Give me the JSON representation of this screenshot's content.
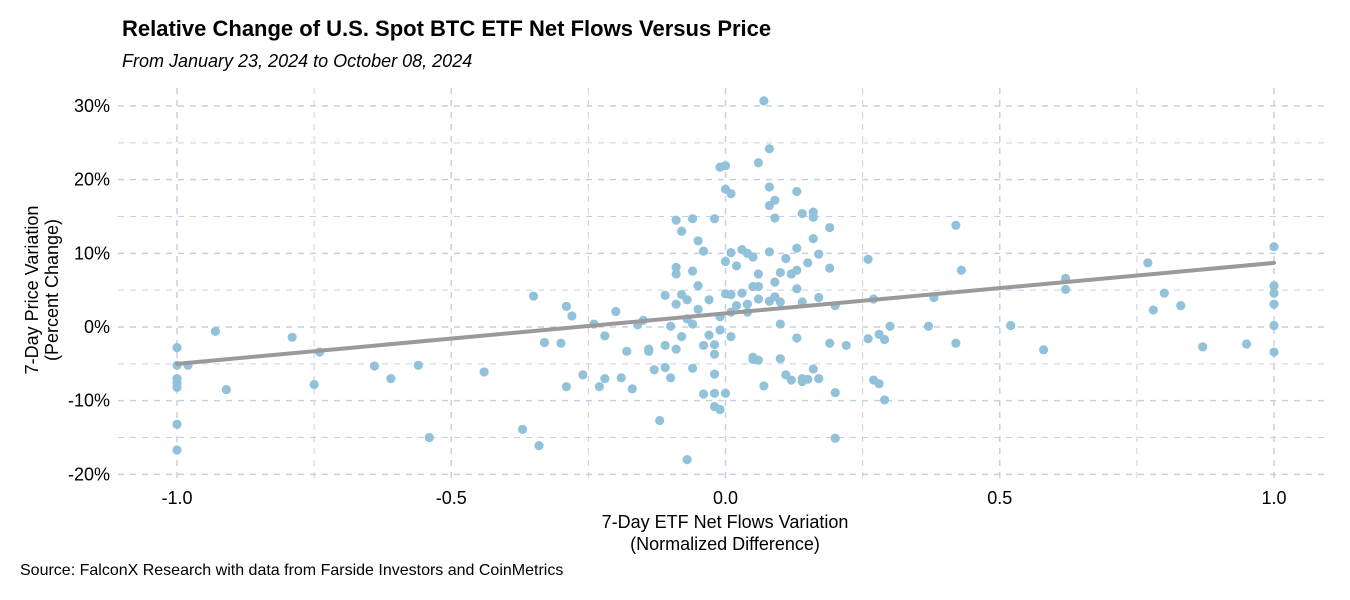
{
  "chart_data": {
    "type": "scatter",
    "title": "Relative Change of U.S. Spot BTC ETF Net Flows Versus Price",
    "subtitle": "From January 23, 2024 to October 08, 2024",
    "xlabel_line1": "7-Day ETF Net Flows Variation",
    "xlabel_line2": "(Normalized Difference)",
    "ylabel_line1": "7-Day Price Variation",
    "ylabel_line2": "(Percent Change)",
    "source": "Source: FalconX Research with data from Farside Investors and CoinMetrics",
    "xlim": [
      -1.1,
      1.1
    ],
    "ylim": [
      -21,
      32
    ],
    "x_ticks": [
      -1.0,
      -0.5,
      0.0,
      0.5,
      1.0
    ],
    "x_tick_labels": [
      "-1.0",
      "-0.5",
      "0.0",
      "0.5",
      "1.0"
    ],
    "y_ticks": [
      30,
      20,
      10,
      0,
      -10,
      -20
    ],
    "y_tick_labels": [
      "30%",
      "20%",
      "10%",
      "0%",
      "-10%",
      "-20%"
    ],
    "grid": true,
    "point_color": "#92c1da",
    "trend_color": "#9a9a9a",
    "grid_color": "#c5d0e4",
    "trendline": {
      "x": [
        -1.0,
        1.0
      ],
      "y": [
        -5.0,
        8.7
      ]
    },
    "points": [
      [
        -1.0,
        -2.8
      ],
      [
        -1.0,
        -5.2
      ],
      [
        -1.0,
        -7.0
      ],
      [
        -1.0,
        -7.6
      ],
      [
        -1.0,
        -8.2
      ],
      [
        -1.0,
        -13.2
      ],
      [
        -1.0,
        -16.7
      ],
      [
        -0.98,
        -5.2
      ],
      [
        -0.93,
        -0.6
      ],
      [
        -0.91,
        -8.5
      ],
      [
        -0.79,
        -1.4
      ],
      [
        -0.75,
        -7.8
      ],
      [
        -0.74,
        -3.4
      ],
      [
        -0.64,
        -5.3
      ],
      [
        -0.61,
        -7.0
      ],
      [
        -0.56,
        -5.2
      ],
      [
        -0.54,
        -15.0
      ],
      [
        -0.44,
        -6.1
      ],
      [
        -0.37,
        -13.9
      ],
      [
        -0.35,
        4.2
      ],
      [
        -0.34,
        -16.1
      ],
      [
        -0.33,
        -2.1
      ],
      [
        -0.3,
        -2.2
      ],
      [
        -0.29,
        2.8
      ],
      [
        -0.29,
        -8.1
      ],
      [
        -0.28,
        1.5
      ],
      [
        -0.26,
        -6.5
      ],
      [
        -0.24,
        0.4
      ],
      [
        -0.23,
        -8.1
      ],
      [
        -0.22,
        -1.2
      ],
      [
        -0.22,
        -7.0
      ],
      [
        -0.2,
        2.1
      ],
      [
        -0.19,
        -6.9
      ],
      [
        -0.18,
        -3.3
      ],
      [
        -0.17,
        -8.4
      ],
      [
        -0.16,
        0.3
      ],
      [
        -0.15,
        0.9
      ],
      [
        -0.14,
        -3.0
      ],
      [
        -0.14,
        -3.3
      ],
      [
        -0.13,
        -5.8
      ],
      [
        -0.12,
        -12.7
      ],
      [
        -0.11,
        -5.5
      ],
      [
        -0.11,
        4.3
      ],
      [
        -0.11,
        -2.5
      ],
      [
        -0.1,
        -6.9
      ],
      [
        -0.1,
        0.1
      ],
      [
        -0.09,
        8.1
      ],
      [
        -0.09,
        7.2
      ],
      [
        -0.09,
        14.5
      ],
      [
        -0.09,
        3.1
      ],
      [
        -0.09,
        -3.0
      ],
      [
        -0.08,
        13.0
      ],
      [
        -0.08,
        4.4
      ],
      [
        -0.08,
        -1.3
      ],
      [
        -0.07,
        -18.0
      ],
      [
        -0.07,
        1.1
      ],
      [
        -0.07,
        3.7
      ],
      [
        -0.06,
        7.6
      ],
      [
        -0.06,
        14.7
      ],
      [
        -0.06,
        0.4
      ],
      [
        -0.06,
        -5.6
      ],
      [
        -0.05,
        11.7
      ],
      [
        -0.05,
        5.6
      ],
      [
        -0.05,
        2.4
      ],
      [
        -0.04,
        -2.5
      ],
      [
        -0.04,
        -9.1
      ],
      [
        -0.04,
        10.3
      ],
      [
        -0.03,
        3.7
      ],
      [
        -0.03,
        -1.1
      ],
      [
        -0.02,
        14.7
      ],
      [
        -0.02,
        -9.0
      ],
      [
        -0.02,
        -6.4
      ],
      [
        -0.02,
        -2.4
      ],
      [
        -0.02,
        -3.7
      ],
      [
        -0.02,
        -10.8
      ],
      [
        -0.01,
        21.7
      ],
      [
        -0.01,
        -0.4
      ],
      [
        -0.01,
        -11.2
      ],
      [
        0.0,
        21.9
      ],
      [
        0.0,
        18.7
      ],
      [
        -0.01,
        1.4
      ],
      [
        0.0,
        -9.0
      ],
      [
        0.0,
        8.9
      ],
      [
        0.0,
        4.5
      ],
      [
        0.01,
        2.0
      ],
      [
        0.01,
        18.1
      ],
      [
        0.01,
        4.4
      ],
      [
        0.01,
        -1.3
      ],
      [
        0.01,
        10.1
      ],
      [
        0.02,
        8.3
      ],
      [
        0.02,
        2.9
      ],
      [
        0.03,
        4.6
      ],
      [
        0.03,
        10.5
      ],
      [
        0.04,
        3.1
      ],
      [
        0.04,
        10.0
      ],
      [
        0.04,
        2.0
      ],
      [
        0.05,
        -4.4
      ],
      [
        0.05,
        -4.1
      ],
      [
        0.05,
        5.5
      ],
      [
        0.05,
        9.5
      ],
      [
        0.06,
        22.3
      ],
      [
        0.06,
        5.5
      ],
      [
        0.06,
        3.8
      ],
      [
        0.06,
        7.2
      ],
      [
        0.06,
        -4.5
      ],
      [
        0.07,
        30.7
      ],
      [
        0.07,
        -8.0
      ],
      [
        0.08,
        24.2
      ],
      [
        0.08,
        19.0
      ],
      [
        0.08,
        16.5
      ],
      [
        0.08,
        10.2
      ],
      [
        0.08,
        3.5
      ],
      [
        0.09,
        17.2
      ],
      [
        0.09,
        14.8
      ],
      [
        0.09,
        6.1
      ],
      [
        0.09,
        4.1
      ],
      [
        0.1,
        7.4
      ],
      [
        0.1,
        0.4
      ],
      [
        0.1,
        -4.3
      ],
      [
        0.1,
        3.4
      ],
      [
        0.11,
        -6.5
      ],
      [
        0.11,
        9.3
      ],
      [
        0.12,
        -7.2
      ],
      [
        0.12,
        7.2
      ],
      [
        0.13,
        10.7
      ],
      [
        0.13,
        18.4
      ],
      [
        0.13,
        7.7
      ],
      [
        0.13,
        5.2
      ],
      [
        0.13,
        -1.5
      ],
      [
        0.14,
        3.4
      ],
      [
        0.14,
        -7.4
      ],
      [
        0.14,
        15.4
      ],
      [
        0.14,
        -7.0
      ],
      [
        0.15,
        8.7
      ],
      [
        0.15,
        -7.1
      ],
      [
        0.16,
        15.6
      ],
      [
        0.16,
        12.0
      ],
      [
        0.16,
        -5.7
      ],
      [
        0.16,
        14.9
      ],
      [
        0.17,
        9.9
      ],
      [
        0.17,
        -7.0
      ],
      [
        0.17,
        4.0
      ],
      [
        0.19,
        13.5
      ],
      [
        0.19,
        8.0
      ],
      [
        0.19,
        -2.2
      ],
      [
        0.2,
        2.9
      ],
      [
        0.2,
        -15.1
      ],
      [
        0.2,
        -8.9
      ],
      [
        0.22,
        -2.5
      ],
      [
        0.26,
        9.2
      ],
      [
        0.26,
        -1.6
      ],
      [
        0.27,
        3.8
      ],
      [
        0.27,
        -7.2
      ],
      [
        0.28,
        -7.7
      ],
      [
        0.28,
        -1.0
      ],
      [
        0.29,
        -9.9
      ],
      [
        0.29,
        -1.7
      ],
      [
        0.3,
        0.1
      ],
      [
        0.37,
        0.1
      ],
      [
        0.38,
        4.0
      ],
      [
        0.42,
        13.8
      ],
      [
        0.42,
        -2.2
      ],
      [
        0.43,
        7.7
      ],
      [
        0.52,
        0.2
      ],
      [
        0.58,
        -3.1
      ],
      [
        0.62,
        6.6
      ],
      [
        0.62,
        5.1
      ],
      [
        0.77,
        8.7
      ],
      [
        0.78,
        2.3
      ],
      [
        0.8,
        4.6
      ],
      [
        0.83,
        2.9
      ],
      [
        0.87,
        -2.7
      ],
      [
        0.95,
        -2.3
      ],
      [
        1.0,
        10.9
      ],
      [
        1.0,
        5.6
      ],
      [
        1.0,
        4.6
      ],
      [
        1.0,
        3.1
      ],
      [
        1.0,
        0.2
      ],
      [
        1.0,
        -3.4
      ]
    ]
  }
}
